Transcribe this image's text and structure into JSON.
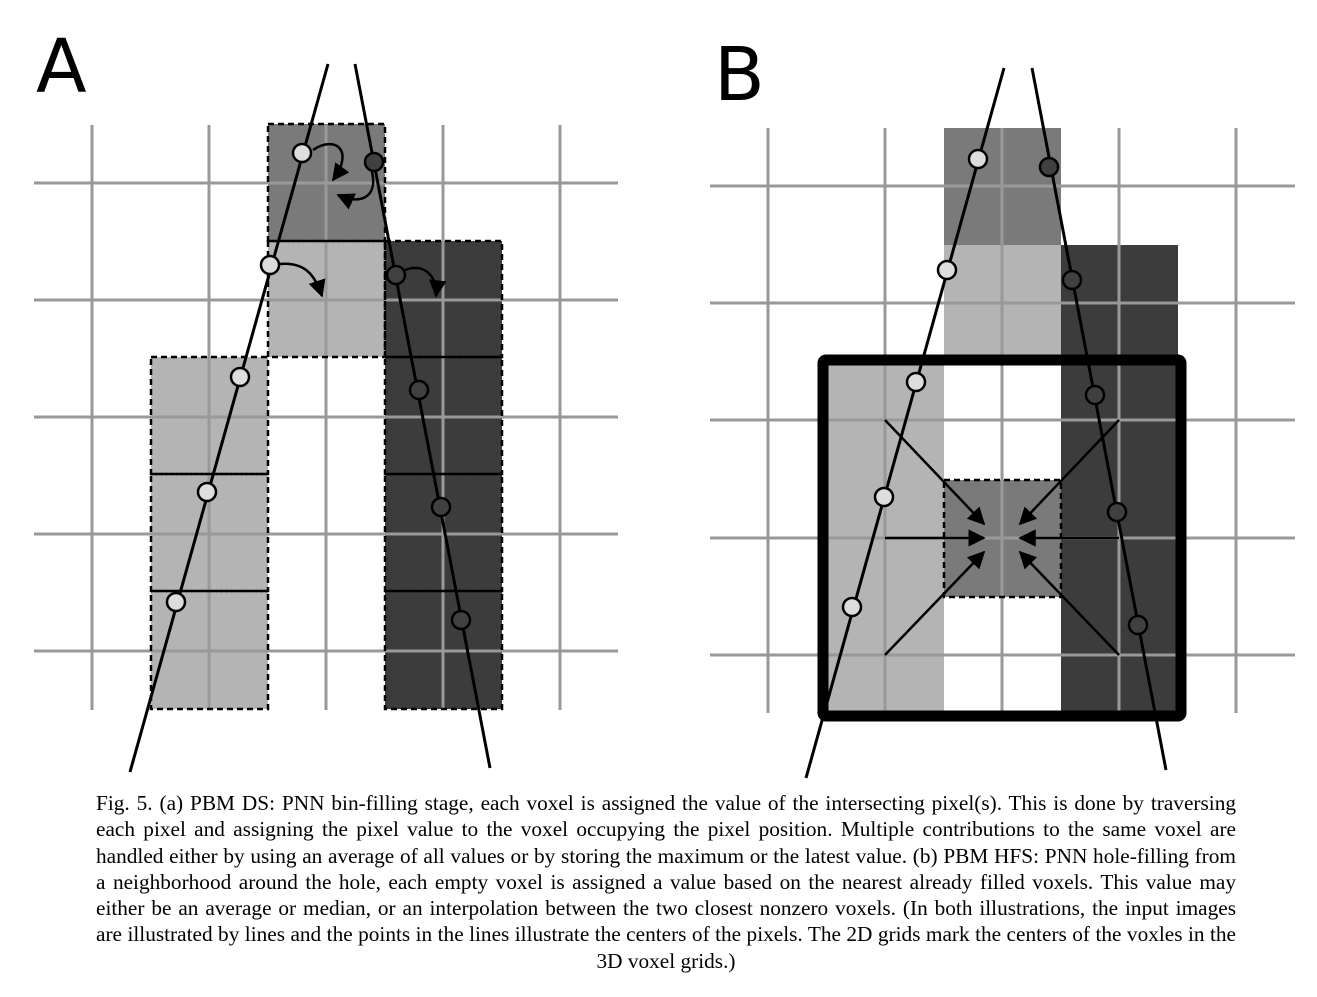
{
  "panels": {
    "a_label": "A",
    "b_label": "B"
  },
  "caption": {
    "text": "Fig. 5. (a) PBM DS: PNN bin-filling stage, each voxel is assigned the value of the intersecting pixel(s). This is done by traversing each pixel and assigning the pixel value to the voxel occupying the pixel position. Multiple contributions to the same voxel are handled either by using an average of all values or by storing the maximum or the latest value. (b) PBM HFS: PNN hole-filling from a neighborhood around the hole, each empty voxel is assigned a value based on the nearest already filled voxels. This value may either be an average or median, or an interpolation between the two closest nonzero voxels. (In both illustrations, the input images are illustrated by lines and the points in the lines illustrate the centers of the pixels. The 2D grids mark the centers of the voxles in the 3D voxel grids.)"
  },
  "colors": {
    "grid": "#999999",
    "light_voxel": "#b4b4b4",
    "mid_voxel": "#7a7a7a",
    "dark_voxel": "#3c3c3c",
    "line": "#000000",
    "pixel_open": "#dddddd",
    "pixel_filled": "#404040"
  }
}
